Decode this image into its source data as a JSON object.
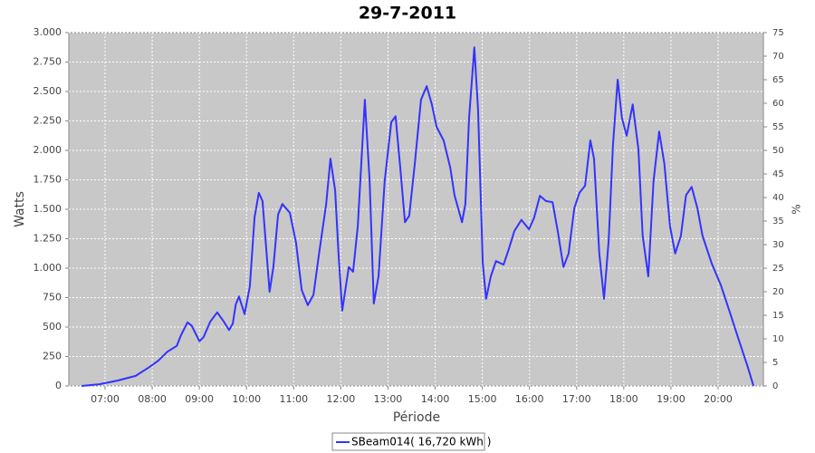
{
  "chart_data": {
    "type": "line",
    "title": "29-7-2011",
    "x_label": "Période",
    "y_label": "Watts",
    "y2_label": "%",
    "x": [
      6.5,
      6.88,
      7.27,
      7.65,
      7.94,
      8.13,
      8.32,
      8.52,
      8.61,
      8.75,
      8.84,
      9.0,
      9.09,
      9.23,
      9.38,
      9.52,
      9.63,
      9.71,
      9.77,
      9.84,
      9.96,
      10.07,
      10.17,
      10.26,
      10.34,
      10.49,
      10.57,
      10.67,
      10.76,
      10.92,
      11.05,
      11.17,
      11.3,
      11.42,
      11.53,
      11.69,
      11.78,
      11.88,
      11.95,
      12.03,
      12.17,
      12.26,
      12.36,
      12.51,
      12.61,
      12.7,
      12.8,
      12.93,
      13.07,
      13.16,
      13.26,
      13.36,
      13.45,
      13.57,
      13.7,
      13.82,
      13.93,
      14.03,
      14.18,
      14.32,
      14.41,
      14.57,
      14.64,
      14.72,
      14.83,
      14.91,
      15.01,
      15.08,
      15.18,
      15.29,
      15.45,
      15.56,
      15.68,
      15.83,
      15.99,
      16.1,
      16.22,
      16.35,
      16.49,
      16.6,
      16.72,
      16.83,
      16.95,
      17.06,
      17.18,
      17.29,
      17.37,
      17.48,
      17.58,
      17.68,
      17.77,
      17.87,
      17.96,
      18.06,
      18.19,
      18.31,
      18.4,
      18.52,
      18.63,
      18.75,
      18.86,
      18.98,
      19.09,
      19.21,
      19.32,
      19.44,
      19.56,
      19.67,
      19.86,
      20.06,
      20.25,
      20.44,
      20.63,
      20.75
    ],
    "series": [
      {
        "name": "SBeam014( 16,720 kWh )",
        "color": "#3333ff",
        "values": [
          0,
          15,
          46,
          85,
          160,
          215,
          290,
          340,
          430,
          540,
          510,
          380,
          415,
          545,
          625,
          545,
          475,
          530,
          690,
          760,
          610,
          845,
          1430,
          1640,
          1570,
          800,
          1010,
          1455,
          1545,
          1470,
          1215,
          815,
          685,
          775,
          1100,
          1545,
          1930,
          1660,
          1125,
          640,
          1010,
          970,
          1355,
          2430,
          1740,
          700,
          930,
          1740,
          2240,
          2290,
          1855,
          1390,
          1445,
          1890,
          2430,
          2545,
          2390,
          2200,
          2085,
          1855,
          1620,
          1390,
          1545,
          2275,
          2875,
          2350,
          1045,
          740,
          930,
          1060,
          1030,
          1160,
          1315,
          1410,
          1330,
          1430,
          1615,
          1570,
          1560,
          1315,
          1010,
          1125,
          1510,
          1640,
          1700,
          2085,
          1930,
          1125,
          740,
          1240,
          2045,
          2600,
          2275,
          2125,
          2390,
          2010,
          1275,
          930,
          1740,
          2160,
          1890,
          1355,
          1125,
          1275,
          1620,
          1690,
          1510,
          1275,
          1045,
          855,
          625,
          390,
          160,
          0
        ]
      }
    ],
    "xlim": [
      6.232,
      20.96
    ],
    "xticks": [
      {
        "value": 7,
        "label": "07:00"
      },
      {
        "value": 8,
        "label": "08:00"
      },
      {
        "value": 9,
        "label": "09:00"
      },
      {
        "value": 10,
        "label": "10:00"
      },
      {
        "value": 11,
        "label": "11:00"
      },
      {
        "value": 12,
        "label": "12:00"
      },
      {
        "value": 13,
        "label": "13:00"
      },
      {
        "value": 14,
        "label": "14:00"
      },
      {
        "value": 15,
        "label": "15:00"
      },
      {
        "value": 16,
        "label": "16:00"
      },
      {
        "value": 17,
        "label": "17:00"
      },
      {
        "value": 18,
        "label": "18:00"
      },
      {
        "value": 19,
        "label": "19:00"
      },
      {
        "value": 20,
        "label": "20:00"
      }
    ],
    "ylim": [
      0,
      3000
    ],
    "yticks": [
      0,
      250,
      500,
      750,
      {
        "value": 1000,
        "label": "1.000"
      },
      {
        "value": 1250,
        "label": "1.250"
      },
      {
        "value": 1500,
        "label": "1.500"
      },
      {
        "value": 1750,
        "label": "1.750"
      },
      {
        "value": 2000,
        "label": "2.000"
      },
      {
        "value": 2250,
        "label": "2.250"
      },
      {
        "value": 2500,
        "label": "2.500"
      },
      {
        "value": 2750,
        "label": "2.750"
      },
      {
        "value": 3000,
        "label": "3.000"
      }
    ],
    "y2lim": [
      0,
      75
    ],
    "y2ticks": [
      0,
      5,
      10,
      15,
      20,
      25,
      30,
      35,
      40,
      45,
      50,
      55,
      60,
      65,
      70,
      75
    ],
    "grid": true
  }
}
